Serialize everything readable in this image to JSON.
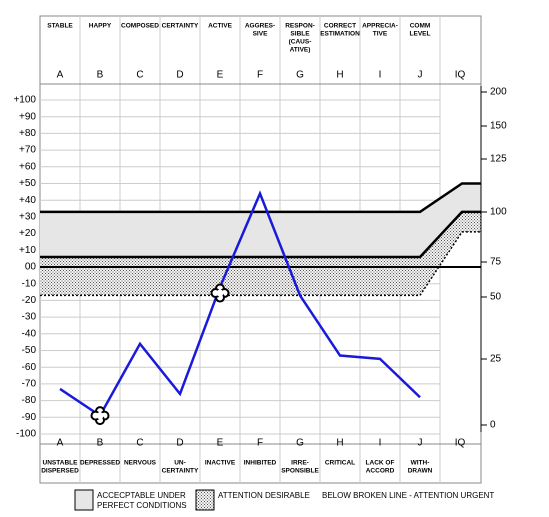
{
  "chart_data": {
    "type": "line",
    "columns": [
      "A",
      "B",
      "C",
      "D",
      "E",
      "F",
      "G",
      "H",
      "I",
      "J",
      "IQ"
    ],
    "top_labels": [
      [
        "STABLE"
      ],
      [
        "HAPPY"
      ],
      [
        "COMPOSED"
      ],
      [
        "CERTAINTY"
      ],
      [
        "ACTIVE"
      ],
      [
        "AGGRES-",
        "SIVE"
      ],
      [
        "RESPON-",
        "SIBLE",
        "(CAUS-",
        "ATIVE)"
      ],
      [
        "CORRECT",
        "ESTIMATION"
      ],
      [
        "APPRECIA-",
        "TIVE"
      ],
      [
        "COMM",
        "LEVEL"
      ]
    ],
    "bottom_labels": [
      [
        "UNSTABLE",
        "DISPERSED"
      ],
      [
        "DEPRESSED"
      ],
      [
        "NERVOUS"
      ],
      [
        "UN-",
        "CERTAINTY"
      ],
      [
        "INACTIVE"
      ],
      [
        "INHIBITED"
      ],
      [
        "IRRE-",
        "SPONSIBLE"
      ],
      [
        "CRITICAL"
      ],
      [
        "LACK OF",
        "ACCORD"
      ],
      [
        "WITH-",
        "DRAWN"
      ]
    ],
    "values": [
      -73,
      -89,
      -46,
      -76,
      -12,
      44,
      -17,
      -53,
      -55,
      -78
    ],
    "color": "#1a1adb",
    "ylim": [
      -100,
      100
    ],
    "yticks": [
      {
        "value": 100,
        "label": "+100"
      },
      {
        "value": 90,
        "label": "+90"
      },
      {
        "value": 80,
        "label": "+80"
      },
      {
        "value": 70,
        "label": "+70"
      },
      {
        "value": 60,
        "label": "+60"
      },
      {
        "value": 50,
        "label": "+50"
      },
      {
        "value": 40,
        "label": "+40"
      },
      {
        "value": 30,
        "label": "+30"
      },
      {
        "value": 20,
        "label": "+20"
      },
      {
        "value": 10,
        "label": "+10"
      },
      {
        "value": 0,
        "label": "00"
      },
      -10,
      -20,
      -30,
      -40,
      -50,
      -60,
      -70,
      -80,
      -90,
      -100
    ],
    "y2ticks": [
      200,
      150,
      125,
      100,
      75,
      50,
      25,
      0
    ],
    "bands": {
      "top": [
        33,
        50
      ],
      "middle": [
        6,
        33
      ],
      "bottom": [
        -17,
        21
      ],
      "zero": 0
    },
    "legend": [
      [
        "ACCECPTABLE UNDER",
        "PERFECT CONDITIONS"
      ],
      [
        "ATTENTION DESIRABLE"
      ],
      [
        "BELOW BROKEN LINE - ATTENTION URGENT"
      ]
    ],
    "grid": true
  }
}
